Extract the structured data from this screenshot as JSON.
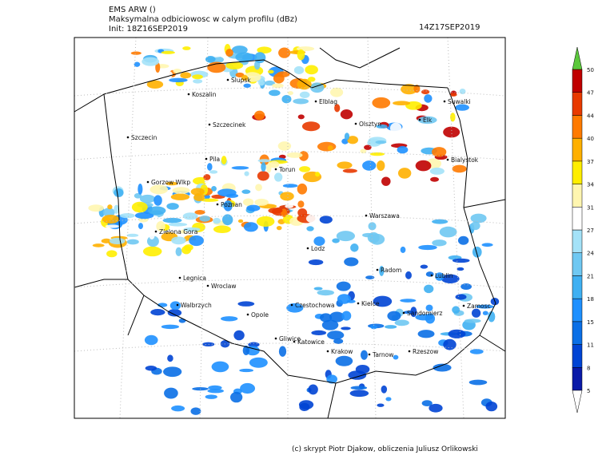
{
  "header": {
    "model": "EMS ARW ()",
    "field": "Maksymalna odbiciowosc w calym profilu (dBz)",
    "init": "Init: 18Z16SEP2019",
    "valid": "14Z17SEP2019"
  },
  "cities": [
    "Slupsk",
    "Koszalin",
    "Elblag",
    "Suwalki",
    "Szczecinek",
    "Olsztyn",
    "Elk",
    "Szczecin",
    "Pila",
    "Torun",
    "Bialystok",
    "Gorzow Wlkp",
    "Poznan",
    "Warszawa",
    "Zielona Gora",
    "Lodz",
    "Radom",
    "Lublin",
    "Legnica",
    "Wroclaw",
    "Walbrzych",
    "Opole",
    "Czestochowa",
    "Kielce",
    "Sandomierz",
    "Zamosc",
    "Gliwice",
    "Katowice",
    "Krakow",
    "Tarnow",
    "Rzeszow"
  ],
  "colorbar": {
    "levels": [
      5,
      8,
      11,
      15,
      18,
      21,
      24,
      27,
      31,
      34,
      37,
      40,
      44,
      47,
      50
    ],
    "colors": [
      "#0a1aa8",
      "#0044d4",
      "#0a6fe6",
      "#1e90ff",
      "#3fb0f2",
      "#6fc8f2",
      "#a4e2f8",
      "#ffffff",
      "#fff6b0",
      "#ffee00",
      "#ffb000",
      "#ff7a00",
      "#e83a00",
      "#c00000"
    ],
    "over_color": "#5cc83c",
    "under_color": "#ffffff"
  },
  "footer": "(c) skrypt Piotr Djakow, obliczenia Juliusz Orlikowski"
}
